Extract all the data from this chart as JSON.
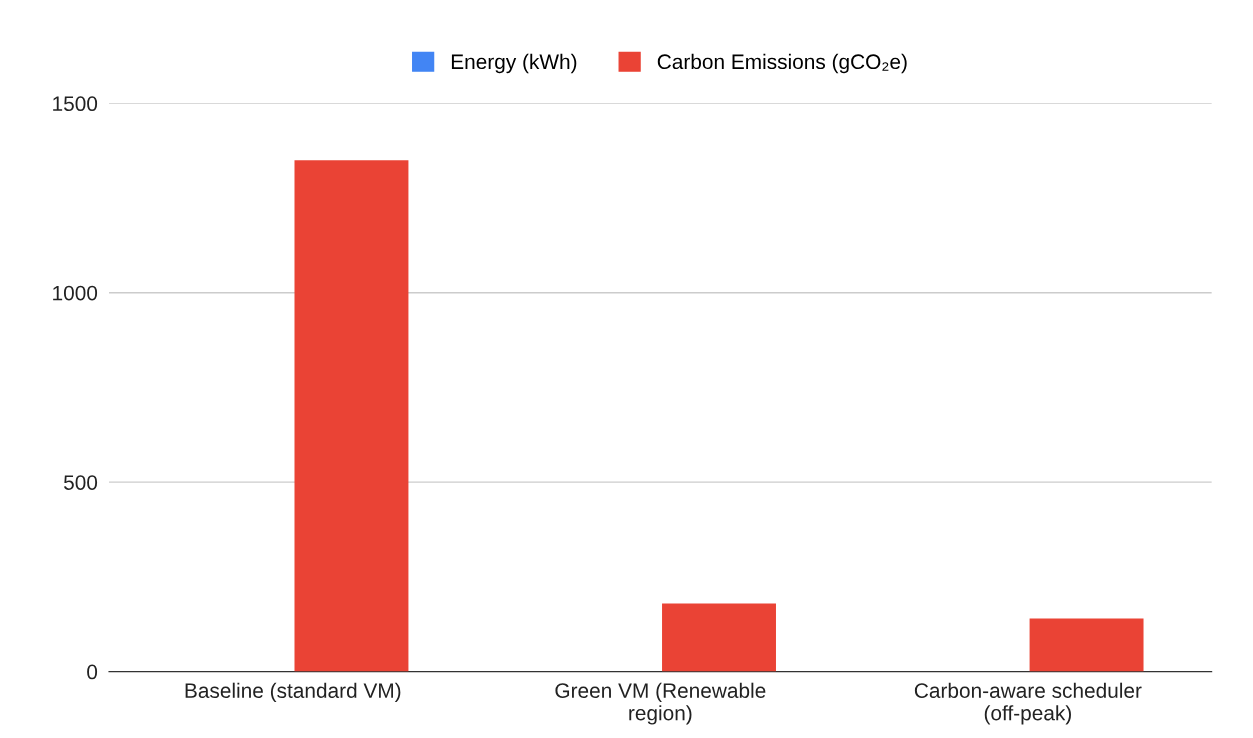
{
  "chart_data": {
    "type": "bar",
    "categories": [
      "Baseline (standard VM)",
      "Green VM (Renewable region)",
      "Carbon-aware scheduler (off-peak)"
    ],
    "series": [
      {
        "name": "Energy (kWh)",
        "color": "#4285f4",
        "values": [
          0,
          0,
          0
        ]
      },
      {
        "name": "Carbon Emissions (gCO₂e)",
        "color": "#ea4335",
        "values": [
          1350,
          180,
          140
        ]
      }
    ],
    "ylim": [
      0,
      1500
    ],
    "yticks": [
      0,
      500,
      1000,
      1500
    ],
    "grid": "y",
    "legend": "top"
  }
}
